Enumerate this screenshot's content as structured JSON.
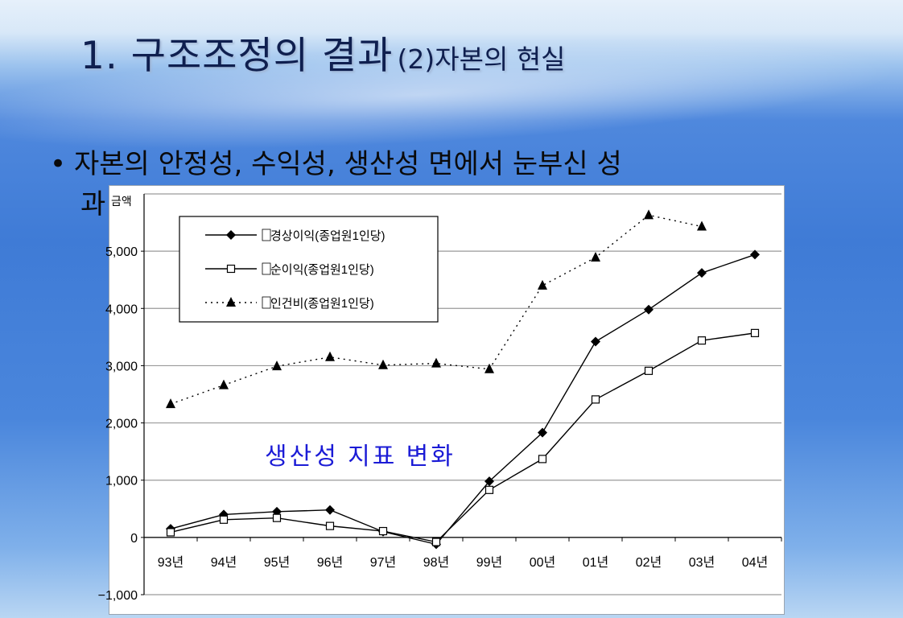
{
  "slide": {
    "title_main": "1. 구조조정의 결과",
    "title_sub": "(2)자본의 현실",
    "bullet": "자본의 안정성, 수익성, 생산성 면에서 눈부신 성",
    "bullet_cont": "과"
  },
  "chart_data": {
    "type": "line",
    "ylabel": "금액",
    "annotation": "생산성 지표 변화",
    "categories": [
      "93년",
      "94년",
      "95년",
      "96년",
      "97년",
      "98년",
      "99년",
      "00년",
      "01년",
      "02년",
      "03년",
      "04년"
    ],
    "ylim": [
      -1000,
      6000
    ],
    "yticks": [
      -1000,
      0,
      1000,
      2000,
      3000,
      4000,
      5000
    ],
    "ytick_labels": [
      "−1,000",
      "0",
      "1,000",
      "2,000",
      "3,000",
      "4,000",
      "5,000"
    ],
    "grid": true,
    "legend_position": "top-left",
    "series": [
      {
        "name": "경상이익(종업원1인당)",
        "marker": "diamond",
        "line": "solid",
        "values": [
          150,
          400,
          450,
          480,
          100,
          -120,
          980,
          1830,
          3420,
          3980,
          4620,
          4940
        ]
      },
      {
        "name": "순이익(종업원1인당)",
        "marker": "square-open",
        "line": "solid",
        "values": [
          90,
          310,
          340,
          200,
          110,
          -80,
          830,
          1370,
          2410,
          2910,
          3440,
          3570
        ]
      },
      {
        "name": "인건비(종업원1인당)",
        "marker": "triangle",
        "line": "dotted",
        "values": [
          2330,
          2660,
          2990,
          3150,
          3010,
          3040,
          2940,
          4400,
          4890,
          5630,
          5430,
          null
        ]
      }
    ]
  }
}
